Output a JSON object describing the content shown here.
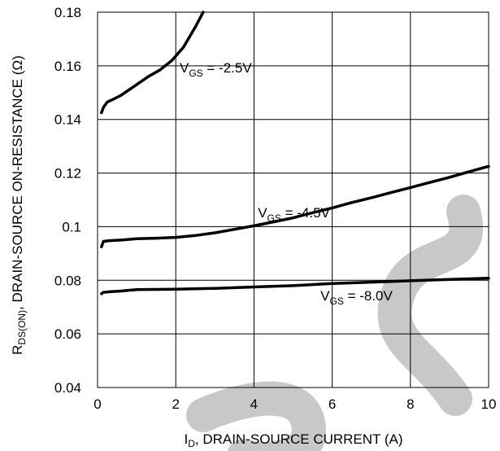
{
  "chart_data": {
    "type": "line",
    "xlabel": {
      "main": "I",
      "sub": "D",
      "rest": ", DRAIN-SOURCE CURRENT (A)"
    },
    "ylabel": {
      "main": "R",
      "sub": "DS(ON)",
      "rest": ", DRAIN-SOURCE ON-RESISTANCE (Ω)"
    },
    "xlim": [
      0,
      10
    ],
    "ylim": [
      0.04,
      0.18
    ],
    "x_ticks": [
      0,
      2,
      4,
      6,
      8,
      10
    ],
    "y_ticks": [
      0.04,
      0.06,
      0.08,
      0.1,
      0.12,
      0.14,
      0.16,
      0.18
    ],
    "x_tick_labels": [
      "0",
      "2",
      "4",
      "6",
      "8",
      "10"
    ],
    "y_tick_labels": [
      "0.04",
      "0.06",
      "0.08",
      "0.1",
      "0.12",
      "0.14",
      "0.16",
      "0.18"
    ],
    "grid": true,
    "series": [
      {
        "name": "VGS = -2.5V",
        "label": {
          "main": "V",
          "sub": "GS",
          "rest": " = -2.5V",
          "x": 2.1,
          "y": 0.1575
        },
        "x": [
          0.1,
          0.15,
          0.25,
          0.4,
          0.6,
          0.8,
          1.0,
          1.3,
          1.6,
          1.9,
          2.2,
          2.5,
          2.7
        ],
        "y": [
          0.1425,
          0.1445,
          0.1465,
          0.1475,
          0.149,
          0.151,
          0.153,
          0.156,
          0.1585,
          0.162,
          0.167,
          0.1745,
          0.18
        ]
      },
      {
        "name": "VGS = -4.5V",
        "label": {
          "main": "V",
          "sub": "GS",
          "rest": " = -4.5V",
          "x": 4.1,
          "y": 0.1035
        },
        "x": [
          0.1,
          0.15,
          0.3,
          0.6,
          1.0,
          1.5,
          2.0,
          2.5,
          3.0,
          3.5,
          4.0,
          4.5,
          5.0,
          5.5,
          6.0,
          6.5,
          7.0,
          7.5,
          8.0,
          8.5,
          9.0,
          9.5,
          10.0
        ],
        "y": [
          0.0925,
          0.0945,
          0.0948,
          0.095,
          0.0955,
          0.0957,
          0.096,
          0.0967,
          0.0977,
          0.099,
          0.1003,
          0.1018,
          0.1033,
          0.1052,
          0.107,
          0.109,
          0.1108,
          0.1127,
          0.1146,
          0.1165,
          0.1184,
          0.1205,
          0.1225
        ]
      },
      {
        "name": "VGS = -8.0V",
        "label": {
          "main": "V",
          "sub": "GS",
          "rest": " = -8.0V",
          "x": 5.7,
          "y": 0.0725
        },
        "x": [
          0.1,
          0.15,
          0.3,
          0.6,
          1.0,
          2.0,
          3.0,
          4.0,
          5.0,
          6.0,
          7.0,
          8.0,
          9.0,
          10.0
        ],
        "y": [
          0.075,
          0.0755,
          0.0757,
          0.076,
          0.0765,
          0.0767,
          0.077,
          0.0775,
          0.078,
          0.0788,
          0.0793,
          0.0798,
          0.0803,
          0.0808
        ]
      }
    ],
    "line_color": "#000000",
    "grid_color": "#000000",
    "watermark_color": "#c8c8c8"
  }
}
